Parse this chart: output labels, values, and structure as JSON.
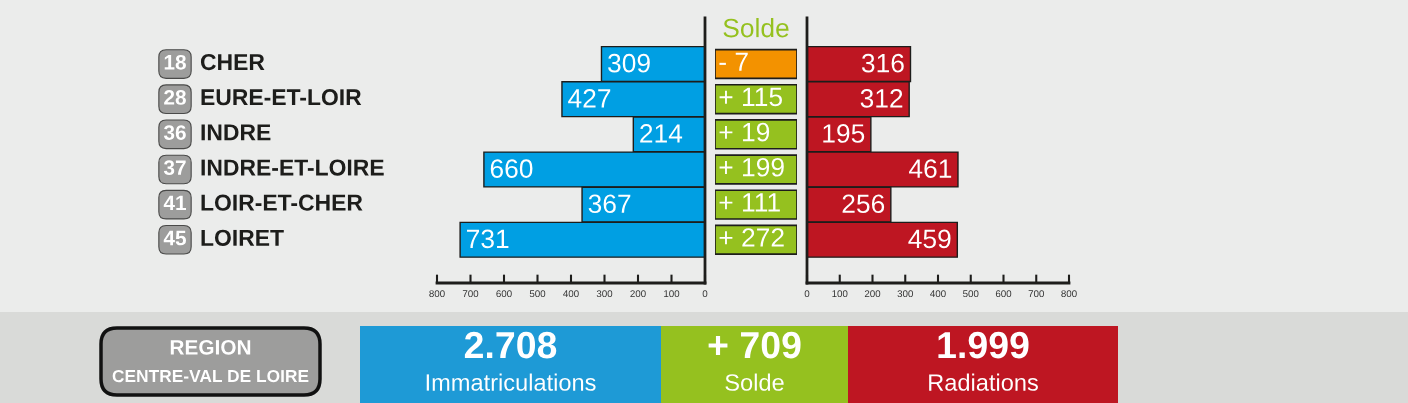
{
  "chart_data": [
    {
      "type": "bar",
      "orientation": "horizontal",
      "categories": [
        "18 CHER",
        "28 EURE-ET-LOIR",
        "36 INDRE",
        "37 INDRE-ET-LOIRE",
        "41 LOIR-ET-CHER",
        "45 LOIRET"
      ],
      "values": [
        309,
        427,
        214,
        660,
        367,
        731
      ],
      "color": "#009fe3",
      "xlim": [
        800,
        0
      ],
      "xticks": [
        800,
        700,
        600,
        500,
        400,
        300,
        200,
        100,
        0
      ],
      "data_labels": true
    },
    {
      "type": "other",
      "title": "Solde",
      "values": [
        -7,
        115,
        19,
        199,
        111,
        272
      ],
      "value_labels": [
        "- 7",
        "+ 115",
        "+ 19",
        "+ 199",
        "+ 111",
        "+ 272"
      ],
      "colors": [
        "#f39200",
        "#95c11f",
        "#95c11f",
        "#95c11f",
        "#95c11f",
        "#95c11f"
      ]
    },
    {
      "type": "bar",
      "orientation": "horizontal",
      "categories": [
        null,
        null,
        null,
        null,
        null,
        null
      ],
      "values": [
        316,
        312,
        195,
        461,
        256,
        459
      ],
      "color": "#be1622",
      "xlim": [
        0,
        800
      ],
      "xticks": [
        0,
        100,
        200,
        300,
        400,
        500,
        600,
        700,
        800
      ],
      "data_labels": true
    },
    {
      "type": "other",
      "title": "REGION",
      "subtitle": "CENTRE-VAL DE LOIRE",
      "categories": [
        "Immatriculations",
        "Solde",
        "Radiations"
      ],
      "values": [
        2708,
        709,
        1999
      ],
      "value_labels": [
        "2.708",
        "+ 709",
        "1.999"
      ],
      "colors": [
        "#1e9ad6",
        "#95c11f",
        "#be1622"
      ]
    }
  ]
}
